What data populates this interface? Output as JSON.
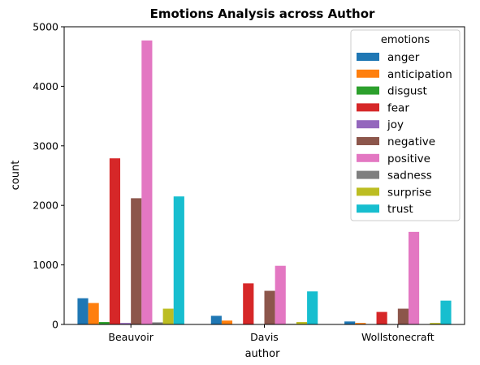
{
  "chart_data": {
    "type": "bar",
    "title": "Emotions Analysis across Author",
    "xlabel": "author",
    "ylabel": "count",
    "ylim": [
      0,
      5000
    ],
    "yticks": [
      0,
      1000,
      2000,
      3000,
      4000,
      5000
    ],
    "categories": [
      "Beauvoir",
      "Davis",
      "Wollstonecraft"
    ],
    "legend": {
      "title": "emotions",
      "placement": "top-right"
    },
    "grid": false,
    "series": [
      {
        "name": "anger",
        "color": "#1f77b4",
        "values": [
          440,
          145,
          50
        ]
      },
      {
        "name": "anticipation",
        "color": "#ff7f0e",
        "values": [
          360,
          65,
          25
        ]
      },
      {
        "name": "disgust",
        "color": "#2ca02c",
        "values": [
          40,
          5,
          5
        ]
      },
      {
        "name": "fear",
        "color": "#d62728",
        "values": [
          2790,
          690,
          210
        ]
      },
      {
        "name": "joy",
        "color": "#9467bd",
        "values": [
          25,
          5,
          5
        ]
      },
      {
        "name": "negative",
        "color": "#8c564b",
        "values": [
          2120,
          565,
          265
        ]
      },
      {
        "name": "positive",
        "color": "#e377c2",
        "values": [
          4770,
          985,
          1555
        ]
      },
      {
        "name": "sadness",
        "color": "#7f7f7f",
        "values": [
          35,
          10,
          5
        ]
      },
      {
        "name": "surprise",
        "color": "#bcbd22",
        "values": [
          265,
          40,
          25
        ]
      },
      {
        "name": "trust",
        "color": "#17becf",
        "values": [
          2150,
          555,
          400
        ]
      }
    ]
  }
}
